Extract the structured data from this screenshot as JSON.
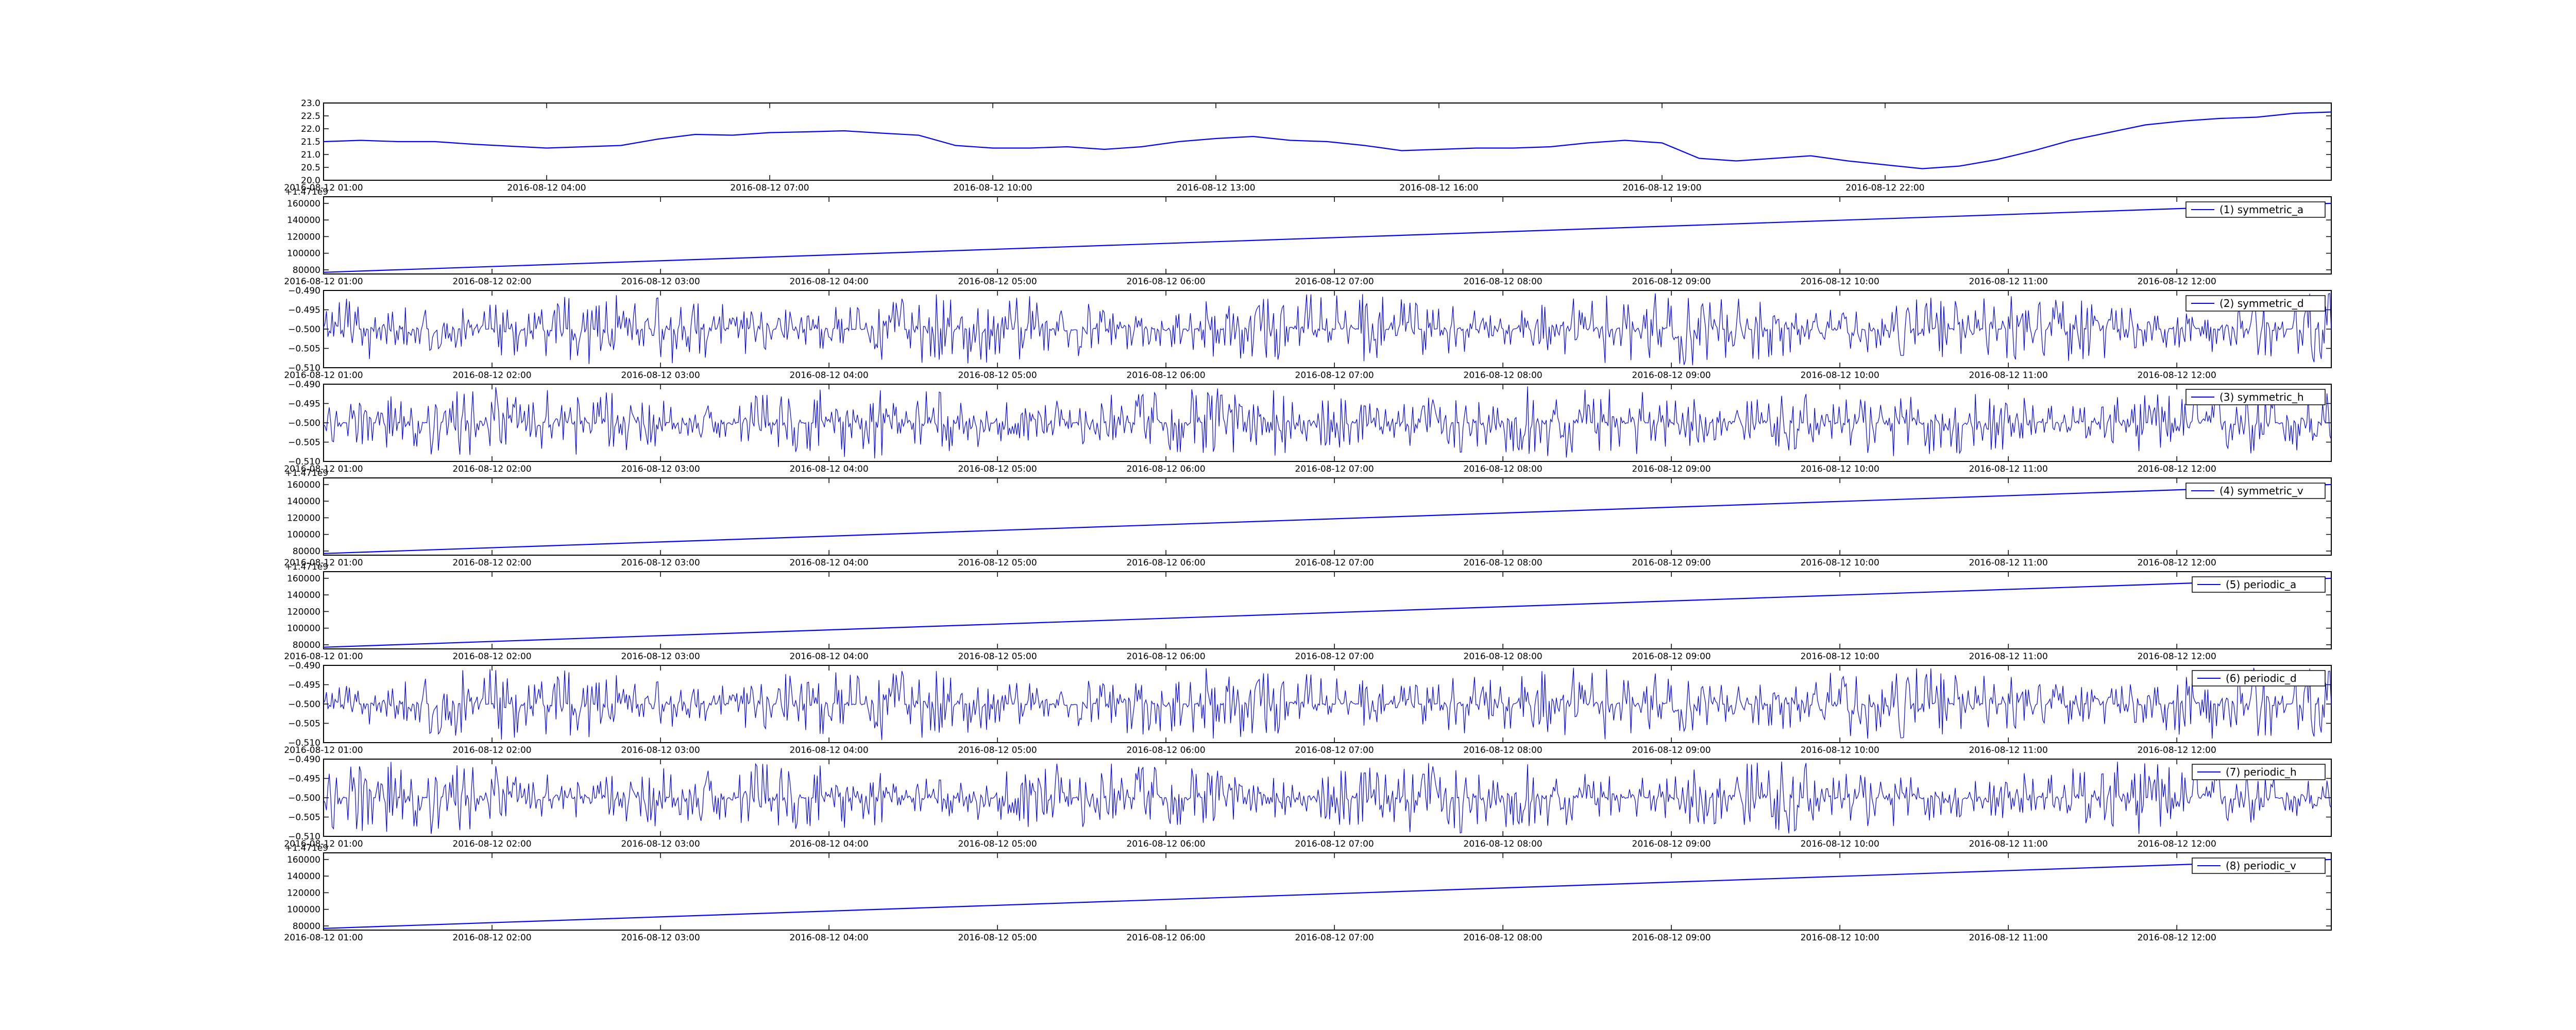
{
  "chart_data": [
    {
      "type": "line",
      "x_range": [
        "2016-08-12 01:00",
        "2016-08-13 04:00"
      ],
      "xtick_labels": [
        "2016-08-12 01:00",
        "2016-08-12 04:00",
        "2016-08-12 07:00",
        "2016-08-12 10:00",
        "2016-08-12 13:00",
        "2016-08-12 16:00",
        "2016-08-12 19:00",
        "2016-08-12 22:00"
      ],
      "ytick_labels": [
        "20.0",
        "20.5",
        "21.0",
        "21.5",
        "22.0",
        "22.5",
        "23.0"
      ],
      "ylim": [
        20.0,
        23.0
      ],
      "series": [
        {
          "color": "#0000ff",
          "x_hours": [
            0,
            0.5,
            1,
            1.5,
            2,
            3,
            4,
            4.5,
            5,
            5.5,
            6,
            6.5,
            7,
            7.5,
            8,
            8.5,
            9,
            9.5,
            10,
            10.5,
            11,
            11.5,
            12,
            12.5,
            13,
            13.5,
            14,
            14.5,
            15,
            15.5,
            16,
            16.5,
            17,
            17.5,
            18,
            18.5,
            19,
            19.5,
            20,
            20.5,
            21,
            21.5,
            22,
            22.5,
            23,
            23.5,
            24,
            24.5,
            25,
            25.5,
            26,
            26.5,
            27
          ],
          "values": [
            21.5,
            21.55,
            21.5,
            21.5,
            21.4,
            21.25,
            21.35,
            21.6,
            21.78,
            21.75,
            21.85,
            21.88,
            21.92,
            21.83,
            21.75,
            21.35,
            21.25,
            21.25,
            21.3,
            21.2,
            21.3,
            21.5,
            21.62,
            21.7,
            21.55,
            21.5,
            21.35,
            21.15,
            21.2,
            21.25,
            21.25,
            21.3,
            21.45,
            21.55,
            21.45,
            20.85,
            20.75,
            20.85,
            20.95,
            20.75,
            20.6,
            20.45,
            20.55,
            20.8,
            21.15,
            21.55,
            21.85,
            22.15,
            22.3,
            22.4,
            22.45,
            22.6,
            22.65
          ]
        }
      ]
    },
    {
      "type": "line",
      "offset_text": "+1.471e9",
      "x_range": [
        "2016-08-12 01:00",
        "2016-08-12 12:55"
      ],
      "xtick_labels": [
        "2016-08-12 01:00",
        "2016-08-12 02:00",
        "2016-08-12 03:00",
        "2016-08-12 04:00",
        "2016-08-12 05:00",
        "2016-08-12 06:00",
        "2016-08-12 07:00",
        "2016-08-12 08:00",
        "2016-08-12 09:00",
        "2016-08-12 10:00",
        "2016-08-12 11:00",
        "2016-08-12 12:00"
      ],
      "ytick_labels": [
        "80000",
        "100000",
        "120000",
        "140000",
        "160000"
      ],
      "ylim": [
        75000,
        168000
      ],
      "series": [
        {
          "name": "(1) symmetric_a",
          "color": "#0000ff",
          "start": 77000,
          "end": 160000
        }
      ]
    },
    {
      "type": "line",
      "x_range": [
        "2016-08-12 01:00",
        "2016-08-12 12:55"
      ],
      "xtick_labels": [
        "2016-08-12 01:00",
        "2016-08-12 02:00",
        "2016-08-12 03:00",
        "2016-08-12 04:00",
        "2016-08-12 05:00",
        "2016-08-12 06:00",
        "2016-08-12 07:00",
        "2016-08-12 08:00",
        "2016-08-12 09:00",
        "2016-08-12 10:00",
        "2016-08-12 11:00",
        "2016-08-12 12:00"
      ],
      "ytick_labels": [
        "−0.490",
        "−0.495",
        "−0.500",
        "−0.505",
        "−0.510"
      ],
      "ylim": [
        -0.51,
        -0.49
      ],
      "series": [
        {
          "name": "(2) symmetric_d",
          "color": "#0000ff",
          "baseline": -0.5,
          "amplitude": 0.006
        }
      ]
    },
    {
      "type": "line",
      "x_range": [
        "2016-08-12 01:00",
        "2016-08-12 12:55"
      ],
      "xtick_labels": [
        "2016-08-12 01:00",
        "2016-08-12 02:00",
        "2016-08-12 03:00",
        "2016-08-12 04:00",
        "2016-08-12 05:00",
        "2016-08-12 06:00",
        "2016-08-12 07:00",
        "2016-08-12 08:00",
        "2016-08-12 09:00",
        "2016-08-12 10:00",
        "2016-08-12 11:00",
        "2016-08-12 12:00"
      ],
      "ytick_labels": [
        "−0.490",
        "−0.495",
        "−0.500",
        "−0.505",
        "−0.510"
      ],
      "ylim": [
        -0.51,
        -0.49
      ],
      "series": [
        {
          "name": "(3) symmetric_h",
          "color": "#0000ff",
          "baseline": -0.5,
          "amplitude": 0.006
        }
      ]
    },
    {
      "type": "line",
      "offset_text": "+1.471e9",
      "x_range": [
        "2016-08-12 01:00",
        "2016-08-12 12:55"
      ],
      "xtick_labels": [
        "2016-08-12 01:00",
        "2016-08-12 02:00",
        "2016-08-12 03:00",
        "2016-08-12 04:00",
        "2016-08-12 05:00",
        "2016-08-12 06:00",
        "2016-08-12 07:00",
        "2016-08-12 08:00",
        "2016-08-12 09:00",
        "2016-08-12 10:00",
        "2016-08-12 11:00",
        "2016-08-12 12:00"
      ],
      "ytick_labels": [
        "80000",
        "100000",
        "120000",
        "140000",
        "160000"
      ],
      "ylim": [
        75000,
        168000
      ],
      "series": [
        {
          "name": "(4) symmetric_v",
          "color": "#0000ff",
          "start": 77000,
          "end": 160000
        }
      ]
    },
    {
      "type": "line",
      "offset_text": "+1.471e9",
      "x_range": [
        "2016-08-12 01:00",
        "2016-08-12 12:55"
      ],
      "xtick_labels": [
        "2016-08-12 01:00",
        "2016-08-12 02:00",
        "2016-08-12 03:00",
        "2016-08-12 04:00",
        "2016-08-12 05:00",
        "2016-08-12 06:00",
        "2016-08-12 07:00",
        "2016-08-12 08:00",
        "2016-08-12 09:00",
        "2016-08-12 10:00",
        "2016-08-12 11:00",
        "2016-08-12 12:00"
      ],
      "ytick_labels": [
        "80000",
        "100000",
        "120000",
        "140000",
        "160000"
      ],
      "ylim": [
        75000,
        168000
      ],
      "series": [
        {
          "name": "(5) periodic_a",
          "color": "#0000ff",
          "start": 77000,
          "end": 160000
        }
      ]
    },
    {
      "type": "line",
      "x_range": [
        "2016-08-12 01:00",
        "2016-08-12 12:55"
      ],
      "xtick_labels": [
        "2016-08-12 01:00",
        "2016-08-12 02:00",
        "2016-08-12 03:00",
        "2016-08-12 04:00",
        "2016-08-12 05:00",
        "2016-08-12 06:00",
        "2016-08-12 07:00",
        "2016-08-12 08:00",
        "2016-08-12 09:00",
        "2016-08-12 10:00",
        "2016-08-12 11:00",
        "2016-08-12 12:00"
      ],
      "ytick_labels": [
        "−0.490",
        "−0.495",
        "−0.500",
        "−0.505",
        "−0.510"
      ],
      "ylim": [
        -0.51,
        -0.49
      ],
      "series": [
        {
          "name": "(6) periodic_d",
          "color": "#0000ff",
          "baseline": -0.5,
          "amplitude": 0.006
        }
      ]
    },
    {
      "type": "line",
      "x_range": [
        "2016-08-12 01:00",
        "2016-08-12 12:55"
      ],
      "xtick_labels": [
        "2016-08-12 01:00",
        "2016-08-12 02:00",
        "2016-08-12 03:00",
        "2016-08-12 04:00",
        "2016-08-12 05:00",
        "2016-08-12 06:00",
        "2016-08-12 07:00",
        "2016-08-12 08:00",
        "2016-08-12 09:00",
        "2016-08-12 10:00",
        "2016-08-12 11:00",
        "2016-08-12 12:00"
      ],
      "ytick_labels": [
        "−0.490",
        "−0.495",
        "−0.500",
        "−0.505",
        "−0.510"
      ],
      "ylim": [
        -0.51,
        -0.49
      ],
      "series": [
        {
          "name": "(7) periodic_h",
          "color": "#0000ff",
          "baseline": -0.5,
          "amplitude": 0.006
        }
      ]
    },
    {
      "type": "line",
      "offset_text": "+1.471e9",
      "x_range": [
        "2016-08-12 01:00",
        "2016-08-12 12:55"
      ],
      "xtick_labels": [
        "2016-08-12 01:00",
        "2016-08-12 02:00",
        "2016-08-12 03:00",
        "2016-08-12 04:00",
        "2016-08-12 05:00",
        "2016-08-12 06:00",
        "2016-08-12 07:00",
        "2016-08-12 08:00",
        "2016-08-12 09:00",
        "2016-08-12 10:00",
        "2016-08-12 11:00",
        "2016-08-12 12:00"
      ],
      "ytick_labels": [
        "80000",
        "100000",
        "120000",
        "140000",
        "160000"
      ],
      "ylim": [
        75000,
        168000
      ],
      "series": [
        {
          "name": "(8) periodic_v",
          "color": "#0000ff",
          "start": 77000,
          "end": 160000
        }
      ]
    }
  ]
}
